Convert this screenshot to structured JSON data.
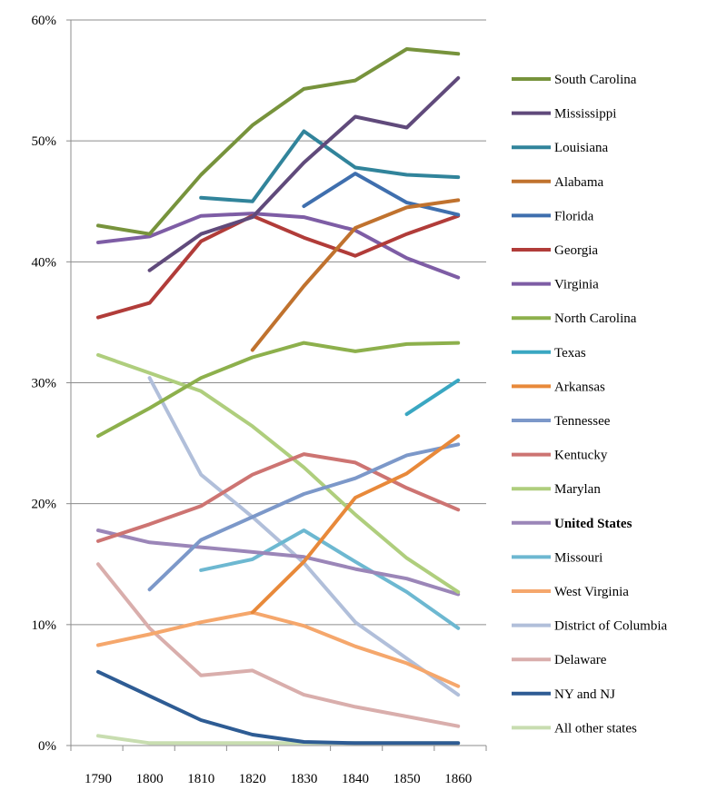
{
  "chart_data": {
    "type": "line",
    "title": "",
    "xlabel": "",
    "ylabel": "",
    "x": [
      1790,
      1800,
      1810,
      1820,
      1830,
      1840,
      1850,
      1860
    ],
    "x_tick_labels": [
      "1790",
      "1800",
      "1810",
      "1820",
      "1830",
      "1840",
      "1850",
      "1860"
    ],
    "ylim": [
      0,
      60
    ],
    "y_ticks": [
      0,
      10,
      20,
      30,
      40,
      50,
      60
    ],
    "y_tick_labels": [
      "0%",
      "10%",
      "20%",
      "30%",
      "40%",
      "50%",
      "60%"
    ],
    "grid": true,
    "legend_position": "right",
    "series": [
      {
        "name": "South Carolina",
        "color": "#77933C",
        "values": [
          43.0,
          42.3,
          47.2,
          51.3,
          54.3,
          55.0,
          57.6,
          57.2
        ]
      },
      {
        "name": "Mississippi",
        "color": "#604A7B",
        "values": [
          null,
          39.3,
          42.3,
          43.7,
          48.2,
          52.0,
          51.1,
          55.2
        ]
      },
      {
        "name": "Louisiana",
        "color": "#31849B",
        "values": [
          null,
          null,
          45.3,
          45.0,
          50.8,
          47.8,
          47.2,
          47.0
        ]
      },
      {
        "name": "Alabama",
        "color": "#C0722E",
        "values": [
          null,
          null,
          null,
          32.7,
          38.0,
          42.8,
          44.5,
          45.1
        ]
      },
      {
        "name": "Florida",
        "color": "#3F6FAE",
        "values": [
          null,
          null,
          null,
          null,
          44.6,
          47.3,
          44.9,
          43.9
        ]
      },
      {
        "name": "Georgia",
        "color": "#B13C39",
        "values": [
          35.4,
          36.6,
          41.7,
          43.8,
          42.0,
          40.5,
          42.3,
          43.8
        ]
      },
      {
        "name": "Virginia",
        "color": "#7E5DA5",
        "values": [
          41.6,
          42.1,
          43.8,
          44.0,
          43.7,
          42.6,
          40.3,
          38.7
        ]
      },
      {
        "name": "North Carolina",
        "color": "#8DB04C",
        "values": [
          25.6,
          27.9,
          30.4,
          32.1,
          33.3,
          32.6,
          33.2,
          33.3
        ]
      },
      {
        "name": "Texas",
        "color": "#3AA7C2",
        "values": [
          null,
          null,
          null,
          null,
          null,
          null,
          27.4,
          30.2
        ]
      },
      {
        "name": "Arkansas",
        "color": "#E8893A",
        "values": [
          null,
          null,
          null,
          11.0,
          15.2,
          20.5,
          22.5,
          25.6
        ]
      },
      {
        "name": "Tennessee",
        "color": "#7C98C9",
        "values": [
          null,
          12.9,
          17.0,
          18.9,
          20.8,
          22.1,
          24.0,
          24.9
        ]
      },
      {
        "name": "Kentucky",
        "color": "#CD7472",
        "values": [
          16.9,
          18.3,
          19.8,
          22.4,
          24.1,
          23.4,
          21.3,
          19.5
        ]
      },
      {
        "name": "Marylan",
        "color": "#AFCE7D",
        "values": [
          32.3,
          30.8,
          29.3,
          26.4,
          23.0,
          19.1,
          15.5,
          12.7
        ]
      },
      {
        "name": "United States",
        "color": "#9B86B8",
        "bold": true,
        "values": [
          17.8,
          16.8,
          16.4,
          16.0,
          15.6,
          14.6,
          13.8,
          12.5
        ]
      },
      {
        "name": "Missouri",
        "color": "#6DB8D1",
        "values": [
          null,
          null,
          14.5,
          15.4,
          17.8,
          15.2,
          12.7,
          9.7
        ]
      },
      {
        "name": "West Virginia",
        "color": "#F5A76C",
        "values": [
          8.3,
          9.2,
          10.2,
          11.0,
          9.9,
          8.2,
          6.8,
          4.9
        ]
      },
      {
        "name": "District of Columbia",
        "color": "#B1BFDA",
        "values": [
          null,
          30.4,
          22.4,
          18.9,
          15.1,
          10.2,
          7.2,
          4.2
        ]
      },
      {
        "name": "Delaware",
        "color": "#D9AEAC",
        "values": [
          15.0,
          9.7,
          5.8,
          6.2,
          4.2,
          3.2,
          2.4,
          1.6
        ]
      },
      {
        "name": "NY and NJ",
        "color": "#2E5C94",
        "values": [
          6.1,
          4.1,
          2.1,
          0.9,
          0.3,
          0.2,
          0.2,
          0.2
        ]
      },
      {
        "name": "All other states",
        "color": "#C8DDB0",
        "values": [
          0.8,
          0.2,
          0.2,
          0.2,
          0.2,
          0.2,
          0.2,
          0.2
        ]
      }
    ]
  }
}
